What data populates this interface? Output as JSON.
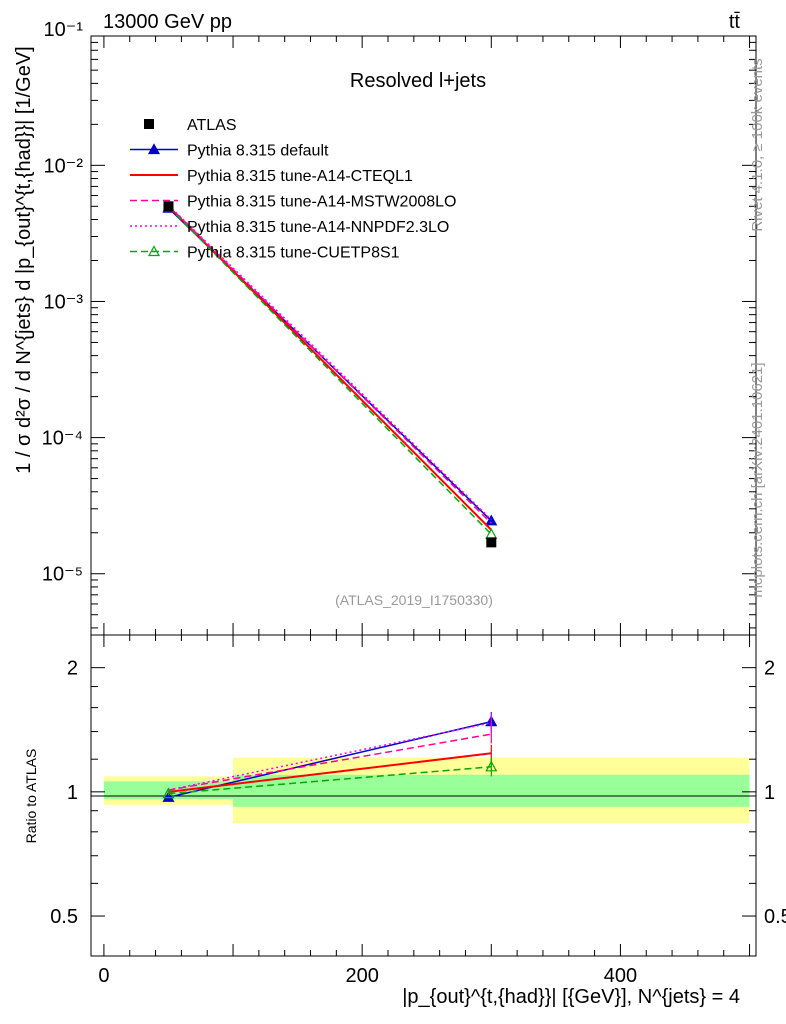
{
  "header": {
    "energy_label": "13000 GeV pp",
    "process_label": "tt̄",
    "panel_title": "Resolved l+jets",
    "analysis_id": "(ATLAS_2019_I1750330)",
    "side_label_rivet": "Rivet 4.1.0, ≥ 100k events",
    "side_label_mcplots": "mcplots.cern.ch [arXiv:2401.10621]"
  },
  "axes": {
    "y_main_label": "1 / σ d²σ / d N^{jets} d |p_{out}^{t,{had}}| [1/GeV]",
    "y_ratio_label": "Ratio to ATLAS",
    "x_label": "|p_{out}^{t,{had}}| [{GeV}], N^{jets} = 4",
    "x_ticks": [
      "0",
      "200",
      "400"
    ],
    "y_main_ticks": [
      "10⁻¹",
      "10⁻²",
      "10⁻³",
      "10⁻⁴",
      "10⁻⁵"
    ],
    "y_ratio_ticks": [
      "2",
      "1",
      "0.5"
    ]
  },
  "chart_data": {
    "type": "line",
    "title": "Resolved l+jets",
    "x_range": [
      -10,
      505
    ],
    "y_main_range_log10": [
      -5.45,
      -1.05
    ],
    "y_ratio_range": [
      0.4,
      2.4
    ],
    "bins": [
      {
        "x_low": 0,
        "x_high": 100,
        "x_center": 50
      },
      {
        "x_low": 100,
        "x_high": 500,
        "x_center": 300
      }
    ],
    "data": {
      "name": "ATLAS",
      "values": [
        0.005,
        1.7e-05
      ],
      "band_inner": [
        [
          0.96,
          1.06
        ],
        [
          0.92,
          1.1
        ]
      ],
      "band_outer": [
        [
          0.93,
          1.09
        ],
        [
          0.84,
          1.21
        ]
      ]
    },
    "series": [
      {
        "name": "ATLAS",
        "color": "#000000",
        "style": "marker"
      },
      {
        "name": "Pythia 8.315 default",
        "color": "#0000cc",
        "style": "solid-triangle",
        "values": [
          0.00485,
          2.45e-05
        ],
        "ratio": [
          0.97,
          1.48
        ],
        "ratio_err": [
          0.01,
          0.08
        ]
      },
      {
        "name": "Pythia 8.315 tune-A14-CTEQL1",
        "color": "#ff0000",
        "style": "solid",
        "values": [
          0.005,
          2.1e-05
        ],
        "ratio": [
          1.0,
          1.24
        ],
        "ratio_err": [
          0.01,
          0.06
        ]
      },
      {
        "name": "Pythia 8.315 tune-A14-MSTW2008LO",
        "color": "#ff0099",
        "style": "dashed",
        "values": [
          0.00505,
          2.35e-05
        ],
        "ratio": [
          1.01,
          1.38
        ],
        "ratio_err": [
          0.01,
          0.07
        ]
      },
      {
        "name": "Pythia 8.315 tune-A14-NNPDF2.3LO",
        "color": "#ff00ff",
        "style": "dotted",
        "values": [
          0.0051,
          2.5e-05
        ],
        "ratio": [
          1.01,
          1.47
        ],
        "ratio_err": [
          0.01,
          0.08
        ]
      },
      {
        "name": "Pythia 8.315 tune-CUETP8S1",
        "color": "#00aa00",
        "style": "dashed-triangle",
        "values": [
          0.00495,
          1.95e-05
        ],
        "ratio": [
          0.99,
          1.15
        ],
        "ratio_err": [
          0.01,
          0.06
        ]
      }
    ]
  }
}
